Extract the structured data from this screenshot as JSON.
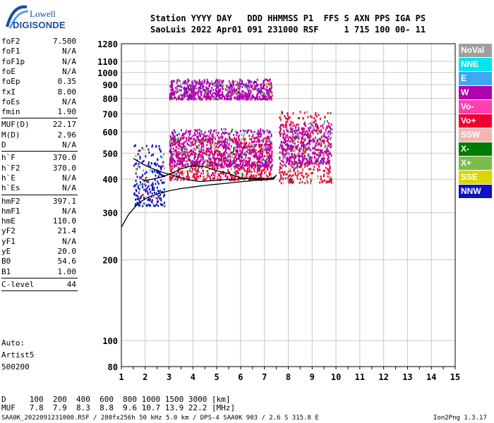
{
  "logo": {
    "top": "Lowell",
    "bottom": "DIGISONDE"
  },
  "header": {
    "line1": "Station YYYY DAY   DDD HHMMSS P1  FFS S AXN PPS IGA PS",
    "line2": "SaoLuis 2022 Apr01 091 231000 RSF     1 715 100 00- 11"
  },
  "params": [
    {
      "label": "foF2",
      "value": "7.500"
    },
    {
      "label": "foF1",
      "value": "N/A"
    },
    {
      "label": "foF1p",
      "value": "N/A"
    },
    {
      "label": "foE",
      "value": "N/A"
    },
    {
      "label": "foEp",
      "value": "0.35"
    },
    {
      "label": "fxI",
      "value": "8.00"
    },
    {
      "label": "foEs",
      "value": "N/A"
    },
    {
      "label": "fmin",
      "value": "1.90"
    },
    {
      "label": "MUF(D)",
      "value": "22.17"
    },
    {
      "label": "M(D)",
      "value": "2.96"
    },
    {
      "label": "D",
      "value": "N/A"
    },
    {
      "label": "h`F",
      "value": "370.0"
    },
    {
      "label": "h`F2",
      "value": "370.0"
    },
    {
      "label": "h`E",
      "value": "N/A"
    },
    {
      "label": "h`Es",
      "value": "N/A"
    },
    {
      "label": "hmF2",
      "value": "397.1"
    },
    {
      "label": "hmF1",
      "value": "N/A"
    },
    {
      "label": "hmE",
      "value": "110.0"
    },
    {
      "label": "yF2",
      "value": "21.4"
    },
    {
      "label": "yF1",
      "value": "N/A"
    },
    {
      "label": "yE",
      "value": "20.0"
    },
    {
      "label": "B0",
      "value": "54.6"
    },
    {
      "label": "B1",
      "value": "1.00"
    },
    {
      "label": "C-level",
      "value": "44"
    }
  ],
  "auto": {
    "line1": "Auto:",
    "line2": "Artist5",
    "line3": "500200"
  },
  "legend": [
    {
      "label": "NoVal",
      "color": "#9e9e9e"
    },
    {
      "label": "NNE",
      "color": "#00e5ee"
    },
    {
      "label": "E",
      "color": "#40a8f0"
    },
    {
      "label": "W",
      "color": "#b000b0"
    },
    {
      "label": "Vo-",
      "color": "#ff3fb0"
    },
    {
      "label": "Vo+",
      "color": "#ee0033"
    },
    {
      "label": "SSW",
      "color": "#f4b4b4"
    },
    {
      "label": "X-",
      "color": "#007a00"
    },
    {
      "label": "X+",
      "color": "#7cbc4c"
    },
    {
      "label": "SSE",
      "color": "#d8d800"
    },
    {
      "label": "NNW",
      "color": "#1010c0"
    }
  ],
  "dtable": {
    "row1": "D     100  200  400  600  800 1000 1500 3000 [km]",
    "row2": "MUF   7.8  7.9  8.3  8.8  9.6 10.7 13.9 22.2 [MHz]"
  },
  "footer": {
    "left": "SAA0K_2022091231000.RSF / 280fx256h 50 kHz 5.0 km / DPS-4 SAA0K 903 / 2.6 S 315.8 E",
    "right": "Ion2Png 1.3.17"
  },
  "chart_data": {
    "type": "scatter",
    "title": "",
    "xlabel": "",
    "ylabel": "",
    "xlim": [
      1,
      15
    ],
    "ylim": [
      80,
      1280
    ],
    "y_scale": "log",
    "x_ticks": [
      1,
      2,
      3,
      4,
      5,
      6,
      7,
      8,
      9,
      10,
      11,
      12,
      13,
      14,
      15
    ],
    "y_ticks": [
      80,
      100,
      200,
      300,
      400,
      500,
      600,
      700,
      800,
      900,
      1000,
      1100,
      1280
    ],
    "grid": true,
    "echo_clusters": [
      {
        "name": "O-trace main",
        "x_range": [
          3.0,
          7.3
        ],
        "y_range": [
          400,
          580
        ],
        "color": "#ee0033"
      },
      {
        "name": "O-trace upper",
        "x_range": [
          3.0,
          7.3
        ],
        "y_range": [
          450,
          620
        ],
        "color": "#b000b0"
      },
      {
        "name": "X-trace main",
        "x_range": [
          7.6,
          9.8
        ],
        "y_range": [
          390,
          720
        ],
        "color": "#ee0033"
      },
      {
        "name": "X-trace upper",
        "x_range": [
          7.6,
          9.8
        ],
        "y_range": [
          460,
          650
        ],
        "color": "#b000b0"
      },
      {
        "name": "low-frequency",
        "x_range": [
          1.5,
          2.8
        ],
        "y_range": [
          320,
          540
        ],
        "color": "#1010c0"
      },
      {
        "name": "second hop",
        "x_range": [
          3.0,
          7.3
        ],
        "y_range": [
          800,
          950
        ],
        "color": "#b000b0"
      }
    ],
    "curves": [
      {
        "name": "O-trace scaled",
        "x": [
          1.85,
          2.0,
          2.3,
          2.8,
          3.2,
          3.6,
          4.0,
          4.5,
          5.0,
          5.5,
          6.0,
          6.5,
          7.0,
          7.4,
          7.5
        ],
        "y": [
          400,
          395,
          400,
          410,
          425,
          440,
          450,
          445,
          430,
          420,
          405,
          400,
          398,
          402,
          415
        ]
      },
      {
        "name": "upper profile",
        "x": [
          1.5,
          1.9,
          2.3,
          2.8,
          3.3,
          3.8,
          4.3,
          4.8,
          5.3,
          5.8,
          6.3,
          6.8,
          7.3,
          7.5
        ],
        "y": [
          478,
          455,
          438,
          422,
          410,
          398,
          392,
          395,
          398,
          400,
          402,
          403,
          402,
          412
        ]
      },
      {
        "name": "lower profile",
        "x": [
          1.0,
          1.3,
          1.7,
          2.1,
          2.5,
          3.0,
          3.5,
          4.0,
          4.5,
          5.0,
          5.5,
          6.0,
          6.5,
          7.0,
          7.4
        ],
        "y": [
          265,
          295,
          325,
          342,
          352,
          362,
          369,
          374,
          379,
          383,
          387,
          391,
          395,
          398,
          400
        ]
      }
    ]
  }
}
